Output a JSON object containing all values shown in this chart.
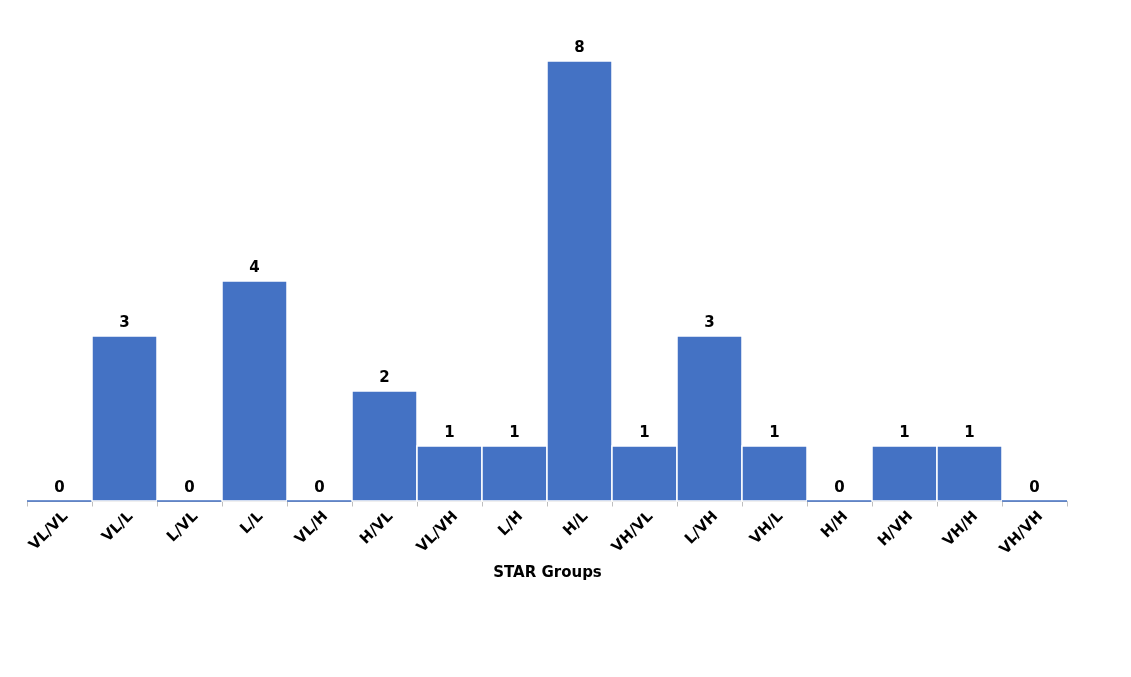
{
  "chart_data": {
    "type": "bar",
    "xlabel": "STAR Groups",
    "categories": [
      "VL/VL",
      "VL/L",
      "L/VL",
      "L/L",
      "VL/H",
      "H/VL",
      "VL/VH",
      "L/H",
      "H/L",
      "VH/VL",
      "L/VH",
      "VH/L",
      "H/H",
      "H/VH",
      "VH/H",
      "VH/VH"
    ],
    "values": [
      0,
      3,
      0,
      4,
      0,
      2,
      1,
      1,
      8,
      1,
      3,
      1,
      0,
      1,
      1,
      0
    ],
    "color": "#4472c4",
    "data_labels": true,
    "tick_labels": "x",
    "grid": false
  }
}
